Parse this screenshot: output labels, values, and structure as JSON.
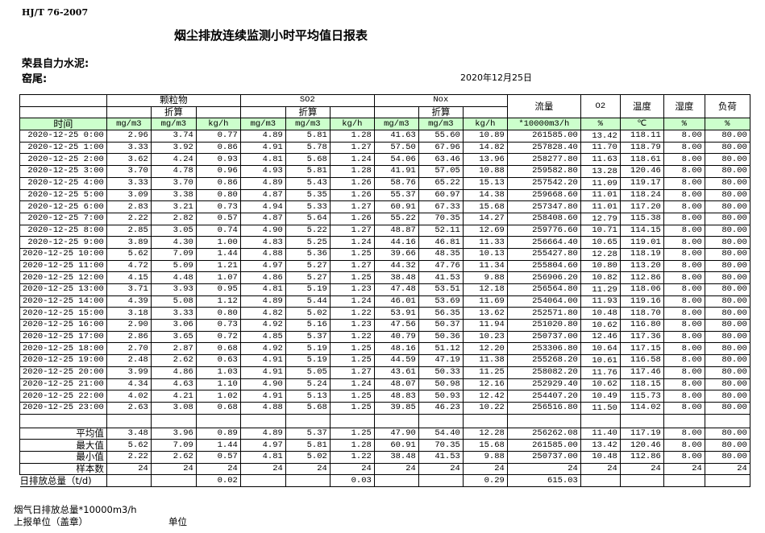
{
  "header": {
    "standard": "HJ/T  76-2007",
    "title": "烟尘排放连续监测小时平均值日报表",
    "company": "荣县自力水泥:",
    "kiln": "窑尾:",
    "date": "2020年12月25日"
  },
  "table": {
    "groups": {
      "particulate": "颗粒物",
      "so2": "SO2",
      "nox": "Nox",
      "converted": "折算",
      "flow": "流量",
      "o2": "O2",
      "temperature": "温度",
      "humidity": "湿度",
      "load": "负荷"
    },
    "units": [
      "时间",
      "mg/m3",
      "mg/m3",
      "kg/h",
      "mg/m3",
      "mg/m3",
      "kg/h",
      "mg/m3",
      "mg/m3",
      "kg/h",
      "*10000m3/h",
      "%",
      "℃",
      "%",
      "%"
    ],
    "header_bg": "#ccffcc",
    "rows": [
      [
        "2020-12-25 0:00",
        "2.96",
        "3.74",
        "0.77",
        "4.89",
        "5.81",
        "1.28",
        "41.63",
        "55.60",
        "10.89",
        "261585.00",
        "13.42",
        "118.11",
        "8.00",
        "80.00"
      ],
      [
        "2020-12-25 1:00",
        "3.33",
        "3.92",
        "0.86",
        "4.91",
        "5.78",
        "1.27",
        "57.50",
        "67.96",
        "14.82",
        "257828.40",
        "11.70",
        "118.79",
        "8.00",
        "80.00"
      ],
      [
        "2020-12-25 2:00",
        "3.62",
        "4.24",
        "0.93",
        "4.81",
        "5.68",
        "1.24",
        "54.06",
        "63.46",
        "13.96",
        "258277.80",
        "11.63",
        "118.61",
        "8.00",
        "80.00"
      ],
      [
        "2020-12-25 3:00",
        "3.70",
        "4.78",
        "0.96",
        "4.93",
        "5.81",
        "1.28",
        "41.91",
        "57.05",
        "10.88",
        "259582.80",
        "13.28",
        "120.46",
        "8.00",
        "80.00"
      ],
      [
        "2020-12-25 4:00",
        "3.33",
        "3.70",
        "0.86",
        "4.89",
        "5.43",
        "1.26",
        "58.76",
        "65.22",
        "15.13",
        "257542.20",
        "11.09",
        "119.17",
        "8.00",
        "80.00"
      ],
      [
        "2020-12-25 5:00",
        "3.09",
        "3.38",
        "0.80",
        "4.87",
        "5.35",
        "1.26",
        "55.37",
        "60.97",
        "14.38",
        "259668.60",
        "11.01",
        "118.24",
        "8.00",
        "80.00"
      ],
      [
        "2020-12-25 6:00",
        "2.83",
        "3.21",
        "0.73",
        "4.94",
        "5.33",
        "1.27",
        "60.91",
        "67.33",
        "15.68",
        "257347.80",
        "11.01",
        "117.20",
        "8.00",
        "80.00"
      ],
      [
        "2020-12-25 7:00",
        "2.22",
        "2.82",
        "0.57",
        "4.87",
        "5.64",
        "1.26",
        "55.22",
        "70.35",
        "14.27",
        "258408.60",
        "12.79",
        "115.38",
        "8.00",
        "80.00"
      ],
      [
        "2020-12-25 8:00",
        "2.85",
        "3.05",
        "0.74",
        "4.90",
        "5.22",
        "1.27",
        "48.87",
        "52.11",
        "12.69",
        "259776.60",
        "10.71",
        "114.15",
        "8.00",
        "80.00"
      ],
      [
        "2020-12-25 9:00",
        "3.89",
        "4.30",
        "1.00",
        "4.83",
        "5.25",
        "1.24",
        "44.16",
        "46.81",
        "11.33",
        "256664.40",
        "10.65",
        "119.01",
        "8.00",
        "80.00"
      ],
      [
        "2020-12-25 10:00",
        "5.62",
        "7.09",
        "1.44",
        "4.88",
        "5.36",
        "1.25",
        "39.66",
        "48.35",
        "10.13",
        "255427.80",
        "12.28",
        "118.19",
        "8.00",
        "80.00"
      ],
      [
        "2020-12-25 11:00",
        "4.72",
        "5.09",
        "1.21",
        "4.97",
        "5.27",
        "1.27",
        "44.32",
        "47.76",
        "11.34",
        "255804.60",
        "10.80",
        "113.20",
        "8.00",
        "80.00"
      ],
      [
        "2020-12-25 12:00",
        "4.15",
        "4.48",
        "1.07",
        "4.86",
        "5.27",
        "1.25",
        "38.48",
        "41.53",
        "9.88",
        "256906.20",
        "10.82",
        "112.86",
        "8.00",
        "80.00"
      ],
      [
        "2020-12-25 13:00",
        "3.71",
        "3.93",
        "0.95",
        "4.81",
        "5.19",
        "1.23",
        "47.48",
        "53.51",
        "12.18",
        "256564.80",
        "11.29",
        "118.06",
        "8.00",
        "80.00"
      ],
      [
        "2020-12-25 14:00",
        "4.39",
        "5.08",
        "1.12",
        "4.89",
        "5.44",
        "1.24",
        "46.01",
        "53.69",
        "11.69",
        "254064.00",
        "11.93",
        "119.16",
        "8.00",
        "80.00"
      ],
      [
        "2020-12-25 15:00",
        "3.18",
        "3.33",
        "0.80",
        "4.82",
        "5.02",
        "1.22",
        "53.91",
        "56.35",
        "13.62",
        "252571.80",
        "10.48",
        "118.70",
        "8.00",
        "80.00"
      ],
      [
        "2020-12-25 16:00",
        "2.90",
        "3.06",
        "0.73",
        "4.92",
        "5.16",
        "1.23",
        "47.56",
        "50.37",
        "11.94",
        "251020.80",
        "10.62",
        "116.80",
        "8.00",
        "80.00"
      ],
      [
        "2020-12-25 17:00",
        "2.86",
        "3.65",
        "0.72",
        "4.85",
        "5.37",
        "1.22",
        "40.79",
        "50.36",
        "10.23",
        "250737.00",
        "12.46",
        "117.36",
        "8.00",
        "80.00"
      ],
      [
        "2020-12-25 18:00",
        "2.70",
        "2.87",
        "0.68",
        "4.92",
        "5.19",
        "1.25",
        "48.16",
        "51.12",
        "12.20",
        "253306.80",
        "10.64",
        "117.15",
        "8.00",
        "80.00"
      ],
      [
        "2020-12-25 19:00",
        "2.48",
        "2.62",
        "0.63",
        "4.91",
        "5.19",
        "1.25",
        "44.59",
        "47.19",
        "11.38",
        "255268.20",
        "10.61",
        "116.58",
        "8.00",
        "80.00"
      ],
      [
        "2020-12-25 20:00",
        "3.99",
        "4.86",
        "1.03",
        "4.91",
        "5.05",
        "1.27",
        "43.61",
        "50.33",
        "11.25",
        "258082.20",
        "11.76",
        "117.46",
        "8.00",
        "80.00"
      ],
      [
        "2020-12-25 21:00",
        "4.34",
        "4.63",
        "1.10",
        "4.90",
        "5.24",
        "1.24",
        "48.07",
        "50.98",
        "12.16",
        "252929.40",
        "10.62",
        "118.15",
        "8.00",
        "80.00"
      ],
      [
        "2020-12-25 22:00",
        "4.02",
        "4.21",
        "1.02",
        "4.91",
        "5.13",
        "1.25",
        "48.83",
        "50.93",
        "12.42",
        "254407.20",
        "10.49",
        "115.73",
        "8.00",
        "80.00"
      ],
      [
        "2020-12-25 23:00",
        "2.63",
        "3.08",
        "0.68",
        "4.88",
        "5.68",
        "1.25",
        "39.85",
        "46.23",
        "10.22",
        "256516.80",
        "11.50",
        "114.02",
        "8.00",
        "80.00"
      ]
    ],
    "summary": [
      [
        "平均值",
        "3.48",
        "3.96",
        "0.89",
        "4.89",
        "5.37",
        "1.25",
        "47.90",
        "54.40",
        "12.28",
        "256262.08",
        "11.40",
        "117.19",
        "8.00",
        "80.00"
      ],
      [
        "最大值",
        "5.62",
        "7.09",
        "1.44",
        "4.97",
        "5.81",
        "1.28",
        "60.91",
        "70.35",
        "15.68",
        "261585.00",
        "13.42",
        "120.46",
        "8.00",
        "80.00"
      ],
      [
        "最小值",
        "2.22",
        "2.62",
        "0.57",
        "4.81",
        "5.02",
        "1.22",
        "38.48",
        "41.53",
        "9.88",
        "250737.00",
        "10.48",
        "112.86",
        "8.00",
        "80.00"
      ],
      [
        "样本数",
        "24",
        "24",
        "24",
        "24",
        "24",
        "24",
        "24",
        "24",
        "24",
        "24",
        "24",
        "24",
        "24",
        "24"
      ],
      [
        "日排放总量（t/d)",
        "",
        "",
        "0.02",
        "",
        "",
        "0.03",
        "",
        "",
        "0.29",
        "615.03",
        "",
        "",
        "",
        ""
      ]
    ]
  },
  "footer": {
    "flue_gas_total": "烟气日排放总量*10000m3/h",
    "reporting_unit": "上报单位（盖章）",
    "unit": "单位"
  }
}
